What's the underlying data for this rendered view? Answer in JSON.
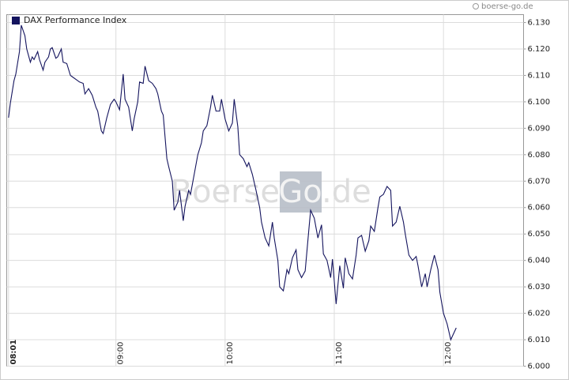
{
  "chart_data": {
    "type": "line",
    "source": "boerse-go.de",
    "watermark": {
      "left": "Boerse",
      "box": "Go",
      "right": ".de"
    },
    "x": [
      481,
      482,
      484,
      485,
      487,
      488,
      490,
      491,
      493,
      494,
      495,
      497,
      498,
      500,
      501,
      503,
      504,
      505,
      507,
      508,
      510,
      511,
      513,
      515,
      516,
      518,
      520,
      522,
      523,
      525,
      527,
      529,
      530,
      532,
      533,
      535,
      537,
      539,
      540,
      542,
      544,
      545,
      547,
      549,
      550,
      552,
      553,
      555,
      556,
      558,
      560,
      562,
      563,
      565,
      566,
      568,
      569,
      571,
      572,
      574,
      575,
      577,
      578,
      580,
      581,
      583,
      585,
      587,
      588,
      590,
      592,
      593,
      595,
      597,
      598,
      600,
      602,
      604,
      605,
      607,
      608,
      610,
      612,
      613,
      615,
      617,
      619,
      620,
      622,
      624,
      626,
      627,
      629,
      630,
      632,
      634,
      635,
      637,
      639,
      640,
      642,
      644,
      646,
      647,
      649,
      651,
      653,
      654,
      656,
      658,
      659,
      661,
      663,
      665,
      666,
      668,
      670,
      672,
      673,
      675,
      677,
      679,
      680,
      682,
      684,
      685,
      687,
      689,
      691,
      692,
      694,
      696,
      698,
      699,
      701,
      703,
      705,
      706,
      708,
      710,
      711,
      713,
      715,
      717,
      718,
      720,
      722,
      724,
      725,
      727
    ],
    "series": [
      {
        "name": "DAX Performance Index",
        "color": "#14145e",
        "values": [
          6094,
          6099.5,
          6108,
          6110.5,
          6119,
          6129,
          6125,
          6120,
          6115,
          6117,
          6116,
          6119,
          6116,
          6112,
          6115,
          6117,
          6120,
          6120.5,
          6116.5,
          6117,
          6120,
          6115,
          6114.5,
          6110,
          6109.5,
          6108.5,
          6107.5,
          6107,
          6103,
          6105,
          6102.5,
          6098,
          6096.5,
          6089,
          6088,
          6094,
          6099,
          6101,
          6100,
          6097,
          6110.5,
          6101,
          6098,
          6089,
          6093.5,
          6100,
          6107.5,
          6107,
          6113.5,
          6108,
          6107,
          6105,
          6103,
          6096.5,
          6095,
          6078.5,
          6075.5,
          6070,
          6059,
          6062,
          6066.5,
          6055,
          6060.5,
          6066.5,
          6065,
          6072.5,
          6080,
          6084.5,
          6089,
          6091,
          6098,
          6102.5,
          6096.5,
          6096.5,
          6101,
          6093.5,
          6089,
          6092,
          6101,
          6090.5,
          6080,
          6078.5,
          6075.5,
          6077,
          6072.5,
          6066.5,
          6060,
          6054.5,
          6048.5,
          6045.5,
          6054.5,
          6048.5,
          6040,
          6030,
          6028.5,
          6036.5,
          6035,
          6041,
          6044,
          6036.5,
          6033.5,
          6036,
          6051.5,
          6059,
          6056,
          6048.5,
          6053.5,
          6042.5,
          6040,
          6033.5,
          6040.5,
          6023.5,
          6038,
          6029.5,
          6041,
          6035,
          6033,
          6042,
          6048.5,
          6049.5,
          6043.5,
          6047.5,
          6053,
          6051,
          6060,
          6064,
          6065,
          6068,
          6066.5,
          6053,
          6054.5,
          6060.5,
          6054.5,
          6050,
          6042,
          6040,
          6041.5,
          6038,
          6030,
          6035,
          6030,
          6036.5,
          6042,
          6036.5,
          6028,
          6020,
          6016,
          6010,
          6011.5,
          6014.5
        ]
      }
    ],
    "xlim": [
      480,
      764
    ],
    "xticks": [
      {
        "value": 481,
        "label": "08:01"
      },
      {
        "value": 540,
        "label": "09:00"
      },
      {
        "value": 600,
        "label": "10:00"
      },
      {
        "value": 660,
        "label": "11:00"
      },
      {
        "value": 720,
        "label": "12:00"
      }
    ],
    "ylim": [
      6000,
      6133
    ],
    "yticks": [
      {
        "value": 6000,
        "label": "6.000"
      },
      {
        "value": 6010,
        "label": "6.010"
      },
      {
        "value": 6020,
        "label": "6.020"
      },
      {
        "value": 6030,
        "label": "6.030"
      },
      {
        "value": 6040,
        "label": "6.040"
      },
      {
        "value": 6050,
        "label": "6.050"
      },
      {
        "value": 6060,
        "label": "6.060"
      },
      {
        "value": 6070,
        "label": "6.070"
      },
      {
        "value": 6080,
        "label": "6.080"
      },
      {
        "value": 6090,
        "label": "6.090"
      },
      {
        "value": 6100,
        "label": "6.100"
      },
      {
        "value": 6110,
        "label": "6.110"
      },
      {
        "value": 6120,
        "label": "6.120"
      },
      {
        "value": 6130,
        "label": "6.130"
      }
    ],
    "grid": true
  }
}
